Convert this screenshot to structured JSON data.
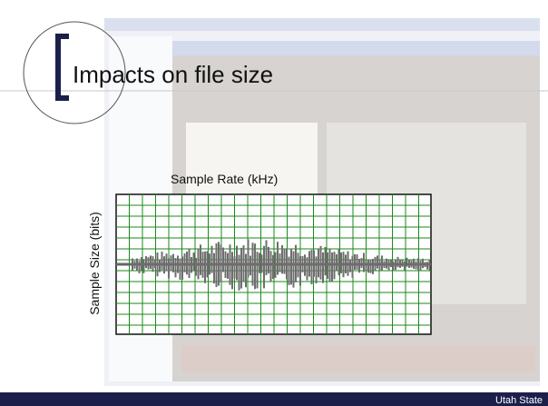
{
  "slide": {
    "title": "Impacts on file size",
    "x_label": "Sample Rate (kHz)",
    "y_label": "Sample Size (bits)",
    "footer": "Utah State"
  }
}
